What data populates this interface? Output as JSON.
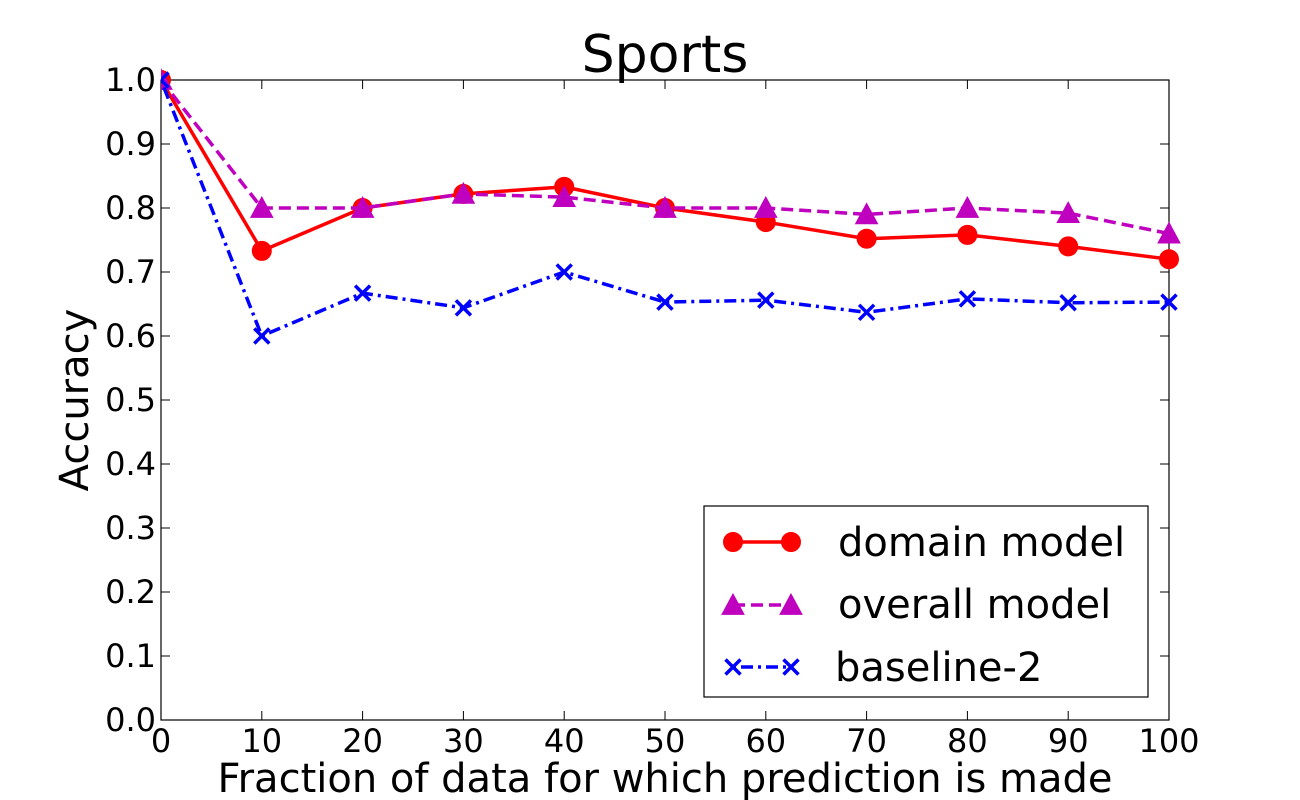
{
  "chart_data": {
    "type": "line",
    "title": "Sports",
    "xlabel": "Fraction of data for which prediction is made",
    "ylabel": "Accuracy",
    "xlim": [
      0,
      100
    ],
    "ylim": [
      0.0,
      1.0
    ],
    "xticks": [
      0,
      10,
      20,
      30,
      40,
      50,
      60,
      70,
      80,
      90,
      100
    ],
    "xtick_labels": [
      "0",
      "10",
      "20",
      "30",
      "40",
      "50",
      "60",
      "70",
      "80",
      "90",
      "100"
    ],
    "yticks": [
      0.0,
      0.1,
      0.2,
      0.3,
      0.4,
      0.5,
      0.6,
      0.7,
      0.8,
      0.9,
      1.0
    ],
    "ytick_labels": [
      "0.0",
      "0.1",
      "0.2",
      "0.3",
      "0.4",
      "0.5",
      "0.6",
      "0.7",
      "0.8",
      "0.9",
      "1.0"
    ],
    "grid": false,
    "legend_position": "lower-right",
    "x": [
      0,
      10,
      20,
      30,
      40,
      50,
      60,
      70,
      80,
      90,
      100
    ],
    "series": [
      {
        "name": "domain model",
        "values": [
          1.0,
          0.733,
          0.8,
          0.822,
          0.833,
          0.8,
          0.778,
          0.752,
          0.758,
          0.74,
          0.72
        ],
        "color": "#ff0000",
        "line_style": "solid",
        "marker": "circle"
      },
      {
        "name": "overall model",
        "values": [
          1.0,
          0.8,
          0.8,
          0.822,
          0.817,
          0.8,
          0.8,
          0.79,
          0.8,
          0.792,
          0.76
        ],
        "color": "#bf00bf",
        "line_style": "dashed",
        "marker": "triangle"
      },
      {
        "name": "baseline-2",
        "values": [
          1.0,
          0.6,
          0.667,
          0.644,
          0.7,
          0.653,
          0.656,
          0.637,
          0.658,
          0.652,
          0.653
        ],
        "color": "#0000ff",
        "line_style": "dashdot",
        "marker": "x"
      }
    ]
  }
}
